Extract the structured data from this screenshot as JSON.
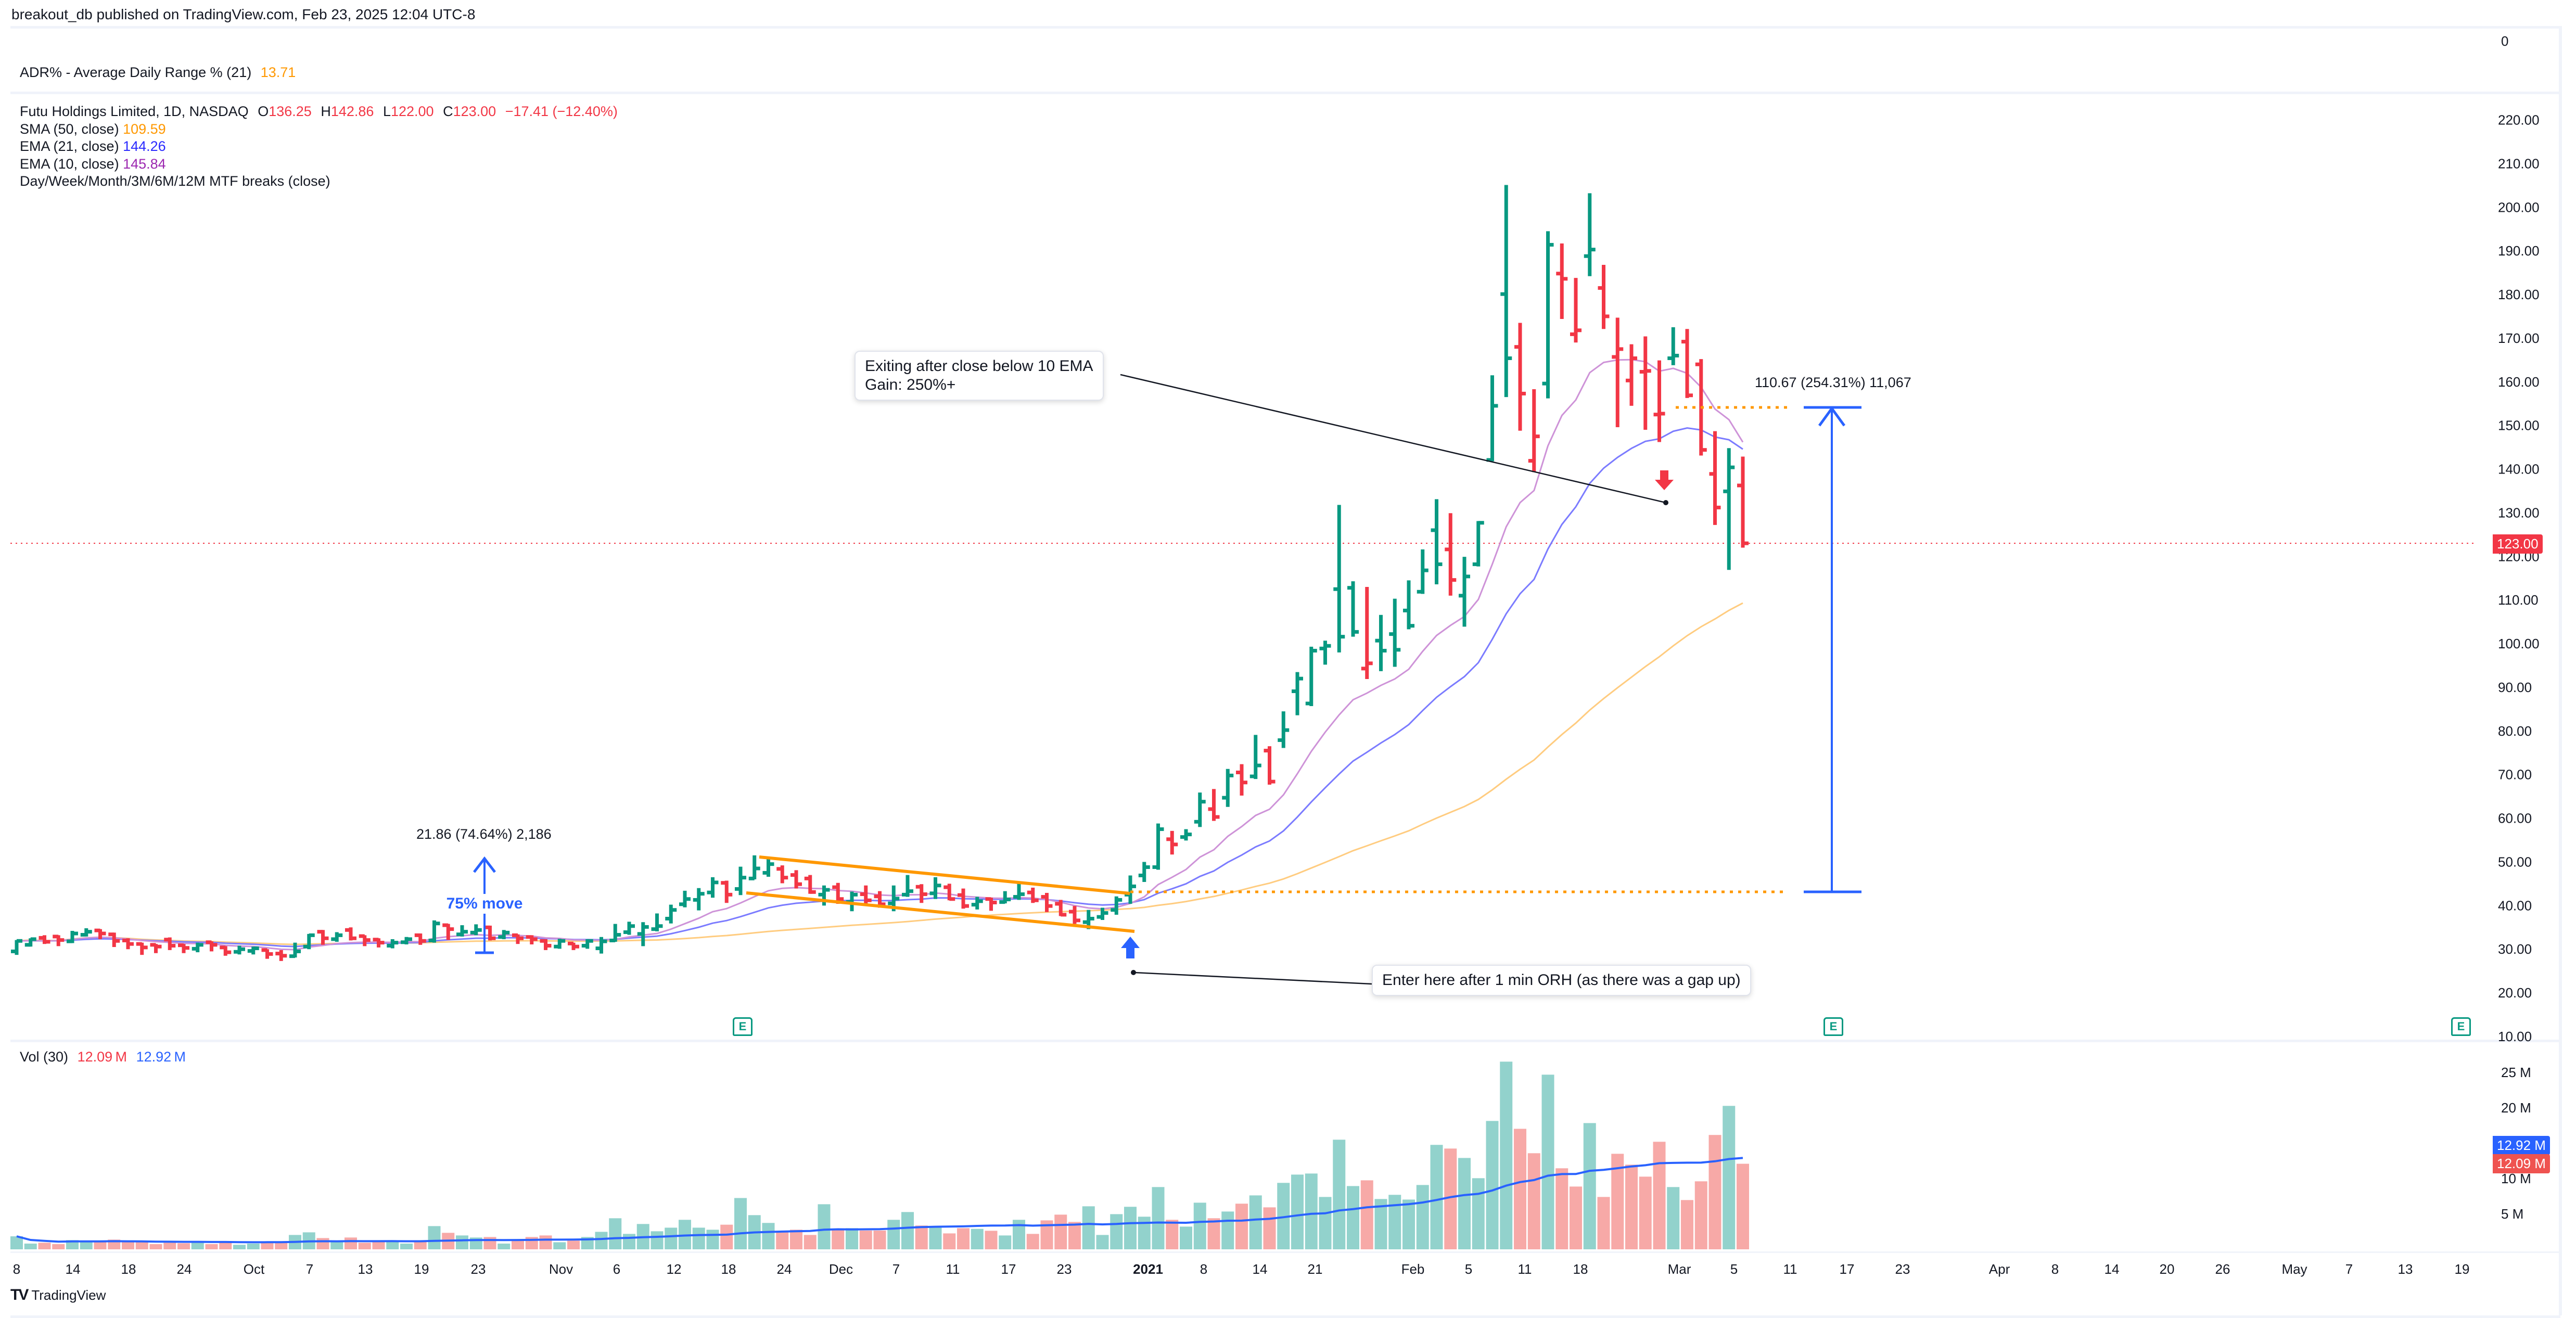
{
  "header": {
    "published": "breakout_db published on TradingView.com, Feb 23, 2025 12:04 UTC-8"
  },
  "adr_pane": {
    "label": "ADR% - Average Daily Range % (21)",
    "value": "13.71",
    "axis_value": "0"
  },
  "legend": {
    "symbol": "Futu Holdings Limited, 1D, NASDAQ",
    "o_label": "O",
    "open": "136.25",
    "h_label": "H",
    "high": "142.86",
    "l_label": "L",
    "low": "122.00",
    "c_label": "C",
    "close": "123.00",
    "change": "−17.41 (−12.40%)",
    "sma50_label": "SMA (50, close)",
    "sma50_value": "109.59",
    "ema21_label": "EMA (21, close)",
    "ema21_value": "144.26",
    "ema10_label": "EMA (10, close)",
    "ema10_value": "145.84",
    "mtf_label": "Day/Week/Month/3M/6M/12M MTF breaks (close)"
  },
  "volume_pane": {
    "label": "Vol (30)",
    "volume": "12.09 M",
    "ma": "12.92 M",
    "tag_ma": "12.92 M",
    "tag_volume": "12.09 M",
    "axis": [
      "25 M",
      "20 M",
      "10 M",
      "5 M"
    ]
  },
  "price_axis": {
    "ticks": [
      "220.00",
      "210.00",
      "200.00",
      "190.00",
      "180.00",
      "170.00",
      "160.00",
      "150.00",
      "140.00",
      "130.00",
      "120.00",
      "110.00",
      "100.00",
      "90.00",
      "80.00",
      "70.00",
      "60.00",
      "50.00",
      "40.00",
      "30.00",
      "20.00",
      "10.00"
    ],
    "last_price": "123.00"
  },
  "time_axis": {
    "labels": [
      "8",
      "14",
      "18",
      "24",
      "Oct",
      "7",
      "13",
      "19",
      "23",
      "Nov",
      "6",
      "12",
      "18",
      "24",
      "Dec",
      "7",
      "11",
      "17",
      "23",
      "2021",
      "8",
      "14",
      "21",
      "Feb",
      "5",
      "11",
      "18",
      "Mar",
      "5",
      "11",
      "17",
      "23",
      "Apr",
      "8",
      "14",
      "20",
      "26",
      "May",
      "7",
      "13",
      "19"
    ]
  },
  "annotations": {
    "exit_callout_line1": "Exiting after close below 10 EMA",
    "exit_callout_line2": "Gain: 250%+",
    "entry_callout": "Enter here after 1 min ORH (as there was a gap up)",
    "big_measure": "110.67 (254.31%) 11,067",
    "small_measure": "21.86 (74.64%) 2,186",
    "small_move_label": "75% move",
    "earnings_badge": "E"
  },
  "footer": {
    "brand": "TradingView"
  },
  "colors": {
    "up": "#089981",
    "down": "#f23645",
    "vol_up": "#92d2cc",
    "vol_down": "#f7a9a7",
    "sma50": "#ffcc80",
    "ema21": "#7b7bff",
    "ema10": "#ce93d8",
    "vol_ma": "#2962ff",
    "flag": "#ff9800",
    "measure": "#2962ff"
  },
  "chart_data": {
    "type": "ohlc",
    "symbol": "Futu Holdings Limited, 1D, NASDAQ",
    "direction": "GGRRGGRRRRRRRGRRGGRRGGRGRRRGGRGRGGRGRRRGRGGGGGGGGGGRGGGRRRGRGRRGGRGRRGRGGRRRRGGGGGGRGGRGRGRGGGGGGRGGGGGRGGGGRRGRRGRRRRRGRRRGR",
    "ohlc": [
      [
        29.5,
        32.1,
        28.7,
        31.9
      ],
      [
        31.0,
        32.5,
        30.6,
        32.3
      ],
      [
        32.6,
        33.2,
        31.2,
        31.7
      ],
      [
        32.9,
        33.2,
        30.7,
        32.1
      ],
      [
        31.8,
        34.2,
        31.4,
        33.6
      ],
      [
        33.3,
        34.8,
        32.9,
        34.0
      ],
      [
        34.3,
        34.6,
        32.3,
        33.6
      ],
      [
        33.4,
        33.8,
        30.5,
        31.9
      ],
      [
        32.0,
        32.5,
        30.0,
        31.2
      ],
      [
        31.2,
        31.5,
        28.7,
        30.4
      ],
      [
        31.0,
        31.2,
        29.1,
        30.6
      ],
      [
        32.2,
        32.7,
        29.8,
        30.8
      ],
      [
        30.9,
        31.2,
        29.1,
        30.3
      ],
      [
        30.1,
        31.5,
        29.3,
        31.0
      ],
      [
        31.6,
        31.8,
        29.5,
        31.0
      ],
      [
        30.4,
        30.7,
        28.5,
        29.3
      ],
      [
        29.4,
        30.8,
        28.8,
        30.0
      ],
      [
        29.6,
        30.6,
        28.8,
        30.2
      ],
      [
        29.8,
        30.0,
        27.8,
        28.9
      ],
      [
        29.0,
        29.8,
        27.3,
        28.5
      ],
      [
        28.4,
        31.5,
        28.1,
        29.5
      ],
      [
        30.6,
        33.5,
        30.0,
        33.2
      ],
      [
        34.0,
        34.4,
        31.0,
        32.5
      ],
      [
        32.3,
        33.9,
        31.7,
        33.2
      ],
      [
        34.4,
        35.0,
        32.0,
        32.5
      ],
      [
        33.0,
        33.2,
        30.7,
        32.1
      ],
      [
        32.2,
        32.5,
        30.4,
        31.5
      ],
      [
        30.8,
        32.3,
        30.2,
        31.5
      ],
      [
        31.6,
        32.8,
        31.1,
        32.3
      ],
      [
        33.2,
        33.6,
        31.0,
        31.9
      ],
      [
        32.0,
        36.6,
        31.5,
        35.9
      ],
      [
        35.5,
        35.8,
        32.1,
        34.6
      ],
      [
        33.4,
        35.5,
        32.9,
        34.0
      ],
      [
        33.8,
        35.7,
        33.2,
        34.4
      ],
      [
        35.0,
        35.4,
        32.0,
        32.5
      ],
      [
        32.8,
        34.4,
        32.3,
        33.8
      ],
      [
        33.2,
        33.4,
        31.2,
        32.5
      ],
      [
        32.8,
        33.2,
        31.1,
        32.3
      ],
      [
        31.9,
        32.3,
        29.8,
        30.8
      ],
      [
        30.6,
        32.4,
        30.1,
        31.9
      ],
      [
        31.3,
        31.5,
        29.8,
        30.6
      ],
      [
        30.8,
        32.3,
        30.1,
        31.9
      ],
      [
        30.2,
        32.8,
        29.0,
        31.8
      ],
      [
        32.0,
        35.8,
        31.7,
        33.3
      ],
      [
        33.9,
        36.3,
        33.3,
        35.3
      ],
      [
        33.5,
        36.2,
        30.7,
        35.1
      ],
      [
        34.6,
        38.2,
        34.1,
        35.3
      ],
      [
        37.0,
        40.2,
        35.9,
        39.0
      ],
      [
        40.3,
        43.4,
        39.6,
        41.5
      ],
      [
        41.3,
        44.0,
        38.9,
        42.7
      ],
      [
        43.0,
        46.5,
        41.8,
        45.3
      ],
      [
        45.2,
        45.7,
        40.6,
        42.5
      ],
      [
        43.8,
        48.9,
        42.4,
        46.4
      ],
      [
        46.2,
        51.5,
        46.0,
        48.5
      ],
      [
        47.5,
        51.1,
        46.6,
        49.5
      ],
      [
        48.4,
        49.2,
        45.1,
        46.4
      ],
      [
        47.0,
        48.1,
        43.9,
        44.9
      ],
      [
        46.2,
        47.0,
        42.7,
        43.1
      ],
      [
        42.5,
        44.6,
        40.0,
        43.6
      ],
      [
        44.2,
        45.2,
        40.4,
        41.5
      ],
      [
        40.8,
        43.2,
        38.7,
        42.5
      ],
      [
        42.6,
        44.6,
        40.1,
        41.2
      ],
      [
        42.1,
        43.3,
        39.5,
        40.3
      ],
      [
        40.5,
        44.6,
        38.7,
        41.6
      ],
      [
        42.5,
        47.0,
        42.0,
        43.3
      ],
      [
        44.3,
        44.9,
        40.6,
        42.6
      ],
      [
        42.8,
        46.5,
        41.5,
        44.6
      ],
      [
        44.2,
        45.0,
        41.2,
        41.5
      ],
      [
        42.4,
        43.9,
        39.3,
        39.9
      ],
      [
        40.2,
        42.0,
        39.1,
        41.0
      ],
      [
        41.5,
        41.8,
        38.8,
        40.7
      ],
      [
        40.8,
        43.3,
        40.5,
        41.4
      ],
      [
        42.0,
        45.1,
        41.3,
        42.6
      ],
      [
        43.0,
        44.1,
        40.6,
        41.2
      ],
      [
        42.0,
        42.9,
        38.5,
        39.9
      ],
      [
        40.4,
        41.3,
        37.6,
        37.9
      ],
      [
        38.6,
        39.9,
        35.8,
        36.6
      ],
      [
        36.2,
        39.0,
        34.6,
        37.0
      ],
      [
        37.4,
        39.5,
        36.7,
        38.3
      ],
      [
        39.0,
        42.1,
        37.9,
        41.3
      ],
      [
        42.5,
        46.9,
        40.4,
        44.4
      ],
      [
        46.9,
        50.0,
        45.4,
        48.8
      ],
      [
        48.8,
        58.8,
        48.2,
        57.5
      ],
      [
        55.2,
        57.1,
        51.7,
        54.0
      ],
      [
        55.7,
        57.5,
        54.9,
        56.3
      ],
      [
        59.2,
        65.9,
        58.0,
        63.8
      ],
      [
        62.1,
        66.7,
        59.4,
        60.3
      ],
      [
        64.7,
        71.3,
        62.6,
        69.8
      ],
      [
        70.5,
        72.4,
        65.2,
        68.2
      ],
      [
        69.6,
        79.1,
        69.0,
        72.1
      ],
      [
        75.5,
        76.5,
        67.7,
        68.4
      ],
      [
        77.9,
        84.5,
        76.1,
        80.2
      ],
      [
        89.1,
        93.5,
        83.6,
        92.0
      ],
      [
        86.3,
        99.3,
        85.7,
        98.4
      ],
      [
        98.9,
        100.7,
        95.2,
        99.5
      ],
      [
        112.5,
        131.8,
        98.0,
        101.6
      ],
      [
        112.8,
        114.3,
        101.6,
        102.7
      ],
      [
        94.3,
        113.0,
        91.9,
        95.5
      ],
      [
        100.7,
        106.6,
        93.7,
        98.4
      ],
      [
        102.2,
        110.3,
        94.7,
        98.6
      ],
      [
        107.6,
        114.5,
        103.3,
        104.1
      ],
      [
        111.9,
        121.6,
        111.4,
        116.8
      ],
      [
        126.0,
        133.1,
        113.6,
        118.2
      ],
      [
        121.6,
        129.9,
        111.0,
        114.6
      ],
      [
        111.0,
        119.9,
        103.9,
        115.4
      ],
      [
        118.2,
        128.1,
        117.7,
        127.7
      ],
      [
        142.1,
        161.5,
        141.8,
        154.5
      ],
      [
        180.1,
        205.1,
        156.5,
        165.4
      ],
      [
        168.0,
        173.5,
        148.8,
        157.3
      ],
      [
        141.9,
        158.3,
        139.3,
        147.5
      ],
      [
        159.6,
        194.5,
        156.2,
        191.4
      ],
      [
        184.8,
        191.7,
        174.4,
        183.6
      ],
      [
        170.9,
        183.8,
        169.0,
        171.8
      ],
      [
        188.8,
        203.2,
        184.2,
        190.3
      ],
      [
        181.5,
        186.8,
        172.1,
        175.0
      ],
      [
        165.7,
        174.7,
        149.6,
        167.5
      ],
      [
        160.3,
        168.6,
        154.5,
        165.4
      ],
      [
        162.3,
        170.4,
        149.0,
        162.5
      ],
      [
        152.5,
        164.9,
        146.2,
        152.7
      ],
      [
        165.4,
        172.5,
        163.8,
        166.0
      ],
      [
        169.2,
        172.1,
        156.3,
        156.9
      ],
      [
        164.0,
        165.2,
        143.1,
        144.4
      ],
      [
        138.9,
        148.7,
        127.2,
        131.2
      ],
      [
        134.9,
        144.8,
        116.9,
        140.4
      ],
      [
        136.25,
        142.86,
        122.0,
        123.0
      ]
    ],
    "volume_millions": [
      1.84,
      0.81,
      0.93,
      0.74,
      1.3,
      1.1,
      1.1,
      1.37,
      1.0,
      1.0,
      0.74,
      0.93,
      0.86,
      1.1,
      0.74,
      1.0,
      0.64,
      0.81,
      1.1,
      1.0,
      2.03,
      2.4,
      1.59,
      1.1,
      1.67,
      0.93,
      1.23,
      1.23,
      0.81,
      1.1,
      3.28,
      2.33,
      1.96,
      1.67,
      1.74,
      0.81,
      1.42,
      1.74,
      1.96,
      1.0,
      1.23,
      1.74,
      2.47,
      4.39,
      2.18,
      3.58,
      2.55,
      3.06,
      4.17,
      3.06,
      2.77,
      3.48,
      7.25,
      4.83,
      3.73,
      2.52,
      2.77,
      2.03,
      6.37,
      2.77,
      2.99,
      2.65,
      2.65,
      4.17,
      5.27,
      3.36,
      3.06,
      2.25,
      2.99,
      2.89,
      2.62,
      1.96,
      4.17,
      2.18,
      4.09,
      4.9,
      3.87,
      6.08,
      2.03,
      4.97,
      6.01,
      4.61,
      8.8,
      4.17,
      3.21,
      6.59,
      4.39,
      5.34,
      6.45,
      7.62,
      5.93,
      9.39,
      10.56,
      10.71,
      7.4,
      15.49,
      8.94,
      9.75,
      7.11,
      7.7,
      7.03,
      9.09,
      14.76,
      14.24,
      12.91,
      10.05,
      18.14,
      26.52,
      17.03,
      13.58,
      24.68,
      11.45,
      8.87,
      17.84,
      7.4,
      13.5,
      11.96,
      10.27,
      15.2,
      8.8,
      6.96,
      9.61,
      16.16,
      20.27,
      12.09
    ],
    "price_range": [
      10,
      220
    ],
    "volume_range": [
      0,
      25
    ],
    "grid": false,
    "overlays": [
      "SMA (50, close)",
      "EMA (21, close)",
      "EMA (10, close)",
      "Vol MA (30)"
    ]
  }
}
